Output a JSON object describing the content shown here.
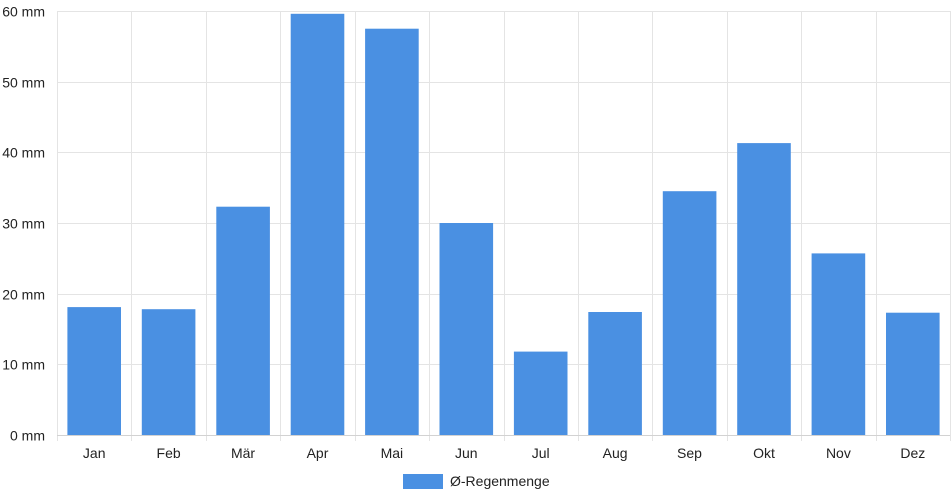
{
  "chart_data": {
    "type": "bar",
    "categories": [
      "Jan",
      "Feb",
      "Mär",
      "Apr",
      "Mai",
      "Jun",
      "Jul",
      "Aug",
      "Sep",
      "Okt",
      "Nov",
      "Dez"
    ],
    "series": [
      {
        "name": "Ø-Regenmenge",
        "values": [
          18.1,
          17.8,
          32.3,
          59.6,
          57.5,
          30.0,
          11.8,
          17.4,
          34.5,
          41.3,
          25.7,
          17.3
        ],
        "color": "#4a90e2"
      }
    ],
    "title": "",
    "xlabel": "",
    "ylabel": "",
    "ylim": [
      0,
      60
    ],
    "yticks": [
      0,
      10,
      20,
      30,
      40,
      50,
      60
    ],
    "ytick_unit": "mm",
    "grid": true,
    "legend": "bottom-center"
  }
}
